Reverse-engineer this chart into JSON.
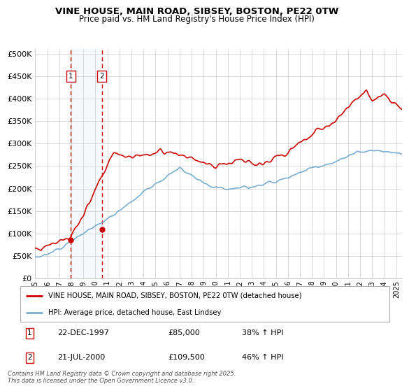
{
  "title_line1": "VINE HOUSE, MAIN ROAD, SIBSEY, BOSTON, PE22 0TW",
  "title_line2": "Price paid vs. HM Land Registry's House Price Index (HPI)",
  "ylabel_ticks": [
    "£0",
    "£50K",
    "£100K",
    "£150K",
    "£200K",
    "£250K",
    "£300K",
    "£350K",
    "£400K",
    "£450K",
    "£500K"
  ],
  "ytick_values": [
    0,
    50000,
    100000,
    150000,
    200000,
    250000,
    300000,
    350000,
    400000,
    450000,
    500000
  ],
  "ylim": [
    0,
    510000
  ],
  "xlim_start": 1995.0,
  "xlim_end": 2025.5,
  "sale1_x": 1997.97,
  "sale1_y": 85000,
  "sale1_label": "1",
  "sale2_x": 2000.55,
  "sale2_y": 109500,
  "sale2_label": "2",
  "red_line_color": "#cc0000",
  "blue_line_color": "#7aadcf",
  "sale_marker_color": "#cc0000",
  "vline_color": "#cc0000",
  "shade_color": "#d8eaf5",
  "legend_label1": "VINE HOUSE, MAIN ROAD, SIBSEY, BOSTON, PE22 0TW (detached house)",
  "legend_label2": "HPI: Average price, detached house, East Lindsey",
  "annotation1_date": "22-DEC-1997",
  "annotation1_price": "£85,000",
  "annotation1_hpi": "38% ↑ HPI",
  "annotation2_date": "21-JUL-2000",
  "annotation2_price": "£109,500",
  "annotation2_hpi": "46% ↑ HPI",
  "footnote": "Contains HM Land Registry data © Crown copyright and database right 2025.\nThis data is licensed under the Open Government Licence v3.0.",
  "xtick_years": [
    1995,
    1996,
    1997,
    1998,
    1999,
    2000,
    2001,
    2002,
    2003,
    2004,
    2005,
    2006,
    2007,
    2008,
    2009,
    2010,
    2011,
    2012,
    2013,
    2014,
    2015,
    2016,
    2017,
    2018,
    2019,
    2020,
    2021,
    2022,
    2023,
    2024,
    2025
  ]
}
